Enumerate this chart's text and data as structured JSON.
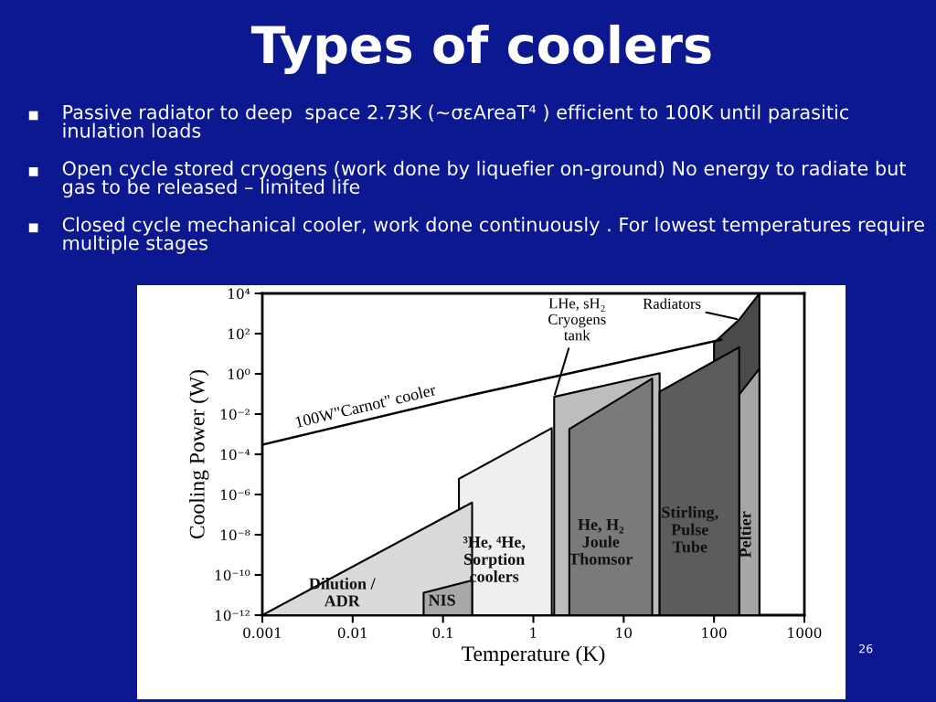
{
  "chart_data": {
    "type": "area",
    "title": "Types of coolers",
    "xlabel": "Temperature (K)",
    "ylabel": "Cooling Power (W)",
    "log": "xy",
    "grid": false,
    "xlim": [
      0.001,
      1000
    ],
    "xticks": [
      0.001,
      0.01,
      0.1,
      1,
      10,
      100,
      1000
    ],
    "ylim": [
      1e-12,
      10000
    ],
    "yticks": [
      {
        "value": 1e-12,
        "label": "10⁻¹²"
      },
      {
        "value": 1e-10,
        "label": "10⁻¹⁰"
      },
      {
        "value": 1e-08,
        "label": "10⁻⁸"
      },
      {
        "value": 1e-06,
        "label": "10⁻⁶"
      },
      {
        "value": 0.0001,
        "label": "10⁻⁴"
      },
      {
        "value": 0.01,
        "label": "10⁻²"
      },
      {
        "value": 1,
        "label": "10⁰"
      },
      {
        "value": 100,
        "label": "10²"
      },
      {
        "value": 10000,
        "label": "10⁴"
      }
    ],
    "series": [
      {
        "name": "³He, ⁴He,\nSorption\ncoolers",
        "color": "#efefef",
        "x": [
          0.15,
          1.6
        ],
        "values": [
          6e-06,
          0.002
        ]
      },
      {
        "name": "Dilution /\nADR",
        "color": "#d9d9d9",
        "x": [
          0.001,
          0.21
        ],
        "values": [
          1e-12,
          4e-07
        ]
      },
      {
        "name": "NIS",
        "color": "#a8a8a8",
        "x": [
          0.061,
          0.21
        ],
        "values": [
          1.3e-11,
          5.4e-11
        ]
      },
      {
        "color": "#4a4a4a",
        "x": [
          100,
          190,
          318
        ],
        "values": [
          35,
          500,
          10000
        ]
      },
      {
        "name": "Peltier",
        "color": "#a6a6a6",
        "x": [
          190,
          318
        ],
        "values": [
          0.093,
          1.8
        ]
      },
      {
        "color": "#bdbdbd",
        "x": [
          1.7,
          25
        ],
        "values": [
          0.072,
          1.07
        ]
      },
      {
        "name": "He, H₂\nJoule\nThomsor",
        "color": "#7a7a7a",
        "x": [
          2.5,
          20.7
        ],
        "values": [
          0.0018,
          0.58
        ]
      },
      {
        "name": "Stirling,\nPulse\nTube",
        "color": "#5c5c5c",
        "x": [
          25,
          190
        ],
        "values": [
          0.13,
          21
        ]
      },
      {
        "name": "100W\"Carnot\" cooler",
        "type": "line",
        "color": "#000000",
        "x": [
          0.001,
          0.21,
          120
        ],
        "values": [
          0.0003,
          0.09,
          50
        ]
      }
    ],
    "annotations": [
      "Passive radiator to deep  space 2.73K (~σεAreaT⁴ ) efficient to 100K until parasitic inulation loads",
      "Open cycle stored cryogens (work done by liquefier on-ground) No energy to radiate but gas to be released – limited life",
      "Closed cycle mechanical cooler, work done continuously . For lowest temperatures require multiple stages",
      {
        "text": "LHe, sH₂\nCryogens\ntank",
        "x": 1.7,
        "y": 0.072
      },
      {
        "text": "Radiators",
        "x": 190,
        "y": 500
      },
      "26"
    ]
  }
}
